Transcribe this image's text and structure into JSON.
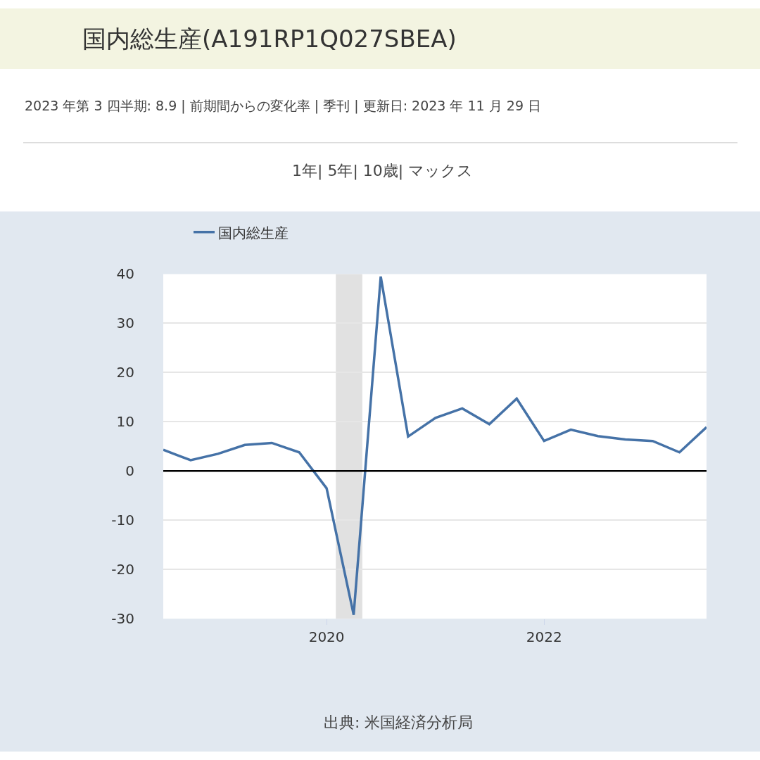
{
  "chart_data": {
    "type": "line",
    "title": "国内総生産(A191RP1Q027SBEA)",
    "subtitle": "2023 年第 3 四半期: 8.9 | 前期間からの変化率 | 季刊 | 更新日: 2023 年 11 月 29 日",
    "x": [
      "2018-07-01",
      "2018-10-01",
      "2019-01-01",
      "2019-04-01",
      "2019-07-01",
      "2019-10-01",
      "2020-01-01",
      "2020-04-01",
      "2020-07-01",
      "2020-10-01",
      "2021-01-01",
      "2021-04-01",
      "2021-07-01",
      "2021-10-01",
      "2022-01-01",
      "2022-04-01",
      "2022-07-01",
      "2022-10-01",
      "2023-01-01",
      "2023-04-01",
      "2023-07-01"
    ],
    "series": [
      {
        "name": "国内総生産",
        "color": "#4572a7",
        "values": [
          4.3,
          2.2,
          3.5,
          5.3,
          5.7,
          3.8,
          -3.5,
          -29.2,
          39.5,
          7.0,
          10.8,
          12.7,
          9.5,
          14.7,
          6.1,
          8.4,
          7.1,
          6.4,
          6.1,
          3.8,
          8.9
        ]
      }
    ],
    "xlim": [
      "2018-07-01",
      "2023-07-01"
    ],
    "xticks": [
      {
        "value": "2020-01-01",
        "label": "2020"
      },
      {
        "value": "2022-01-01",
        "label": "2022"
      }
    ],
    "ylim": [
      -30,
      40
    ],
    "yticks": [
      -30,
      -20,
      -10,
      0,
      10,
      20,
      30,
      40
    ],
    "grid": "y",
    "legend": "top left",
    "marker": "none",
    "line_style": "solid",
    "ref_lines": [
      {
        "axis": "y",
        "value": 0,
        "color": "#000000"
      }
    ],
    "bands": [
      {
        "axis": "x",
        "from": "2020-02-01",
        "to": "2020-04-30",
        "color": "#e1e1e1"
      }
    ],
    "annotations": [
      "1年| 5年| 10歳| マックス",
      "出典: 米国経済分析局"
    ]
  }
}
